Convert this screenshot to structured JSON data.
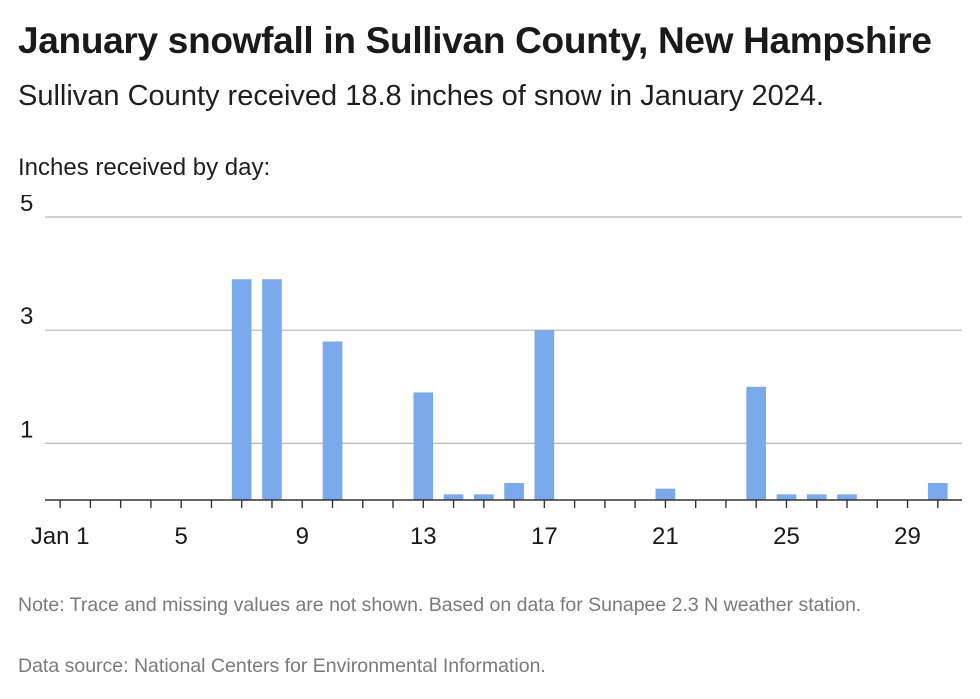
{
  "header": {
    "title": "January snowfall in Sullivan County, New Hampshire",
    "subtitle": "Sullivan County received 18.8 inches of snow in January 2024."
  },
  "footer": {
    "note": "Note: Trace and missing values are not shown. Based on data for Sunapee 2.3 N weather station.",
    "source": "Data source: National Centers for Environmental Information."
  },
  "chart_data": {
    "type": "bar",
    "title": "January snowfall in Sullivan County, New Hampshire",
    "ylabel": "Inches received by day:",
    "xlabel": "",
    "x": [
      1,
      2,
      3,
      4,
      5,
      6,
      7,
      8,
      9,
      10,
      11,
      12,
      13,
      14,
      15,
      16,
      17,
      18,
      19,
      20,
      21,
      22,
      23,
      24,
      25,
      26,
      27,
      28,
      29,
      30
    ],
    "values": [
      0,
      0,
      0,
      0,
      0,
      0,
      3.9,
      3.9,
      0,
      2.8,
      0,
      0,
      1.9,
      0.1,
      0.1,
      0.3,
      3.0,
      0,
      0,
      0,
      0.2,
      0,
      0,
      2.0,
      0.1,
      0.1,
      0.1,
      0,
      0,
      0.3
    ],
    "x_ticks": [
      1,
      5,
      9,
      13,
      17,
      21,
      25,
      29
    ],
    "x_tick_labels": [
      "Jan 1",
      "5",
      "9",
      "13",
      "17",
      "21",
      "25",
      "29"
    ],
    "y_ticks": [
      1,
      3,
      5
    ],
    "y_tick_labels": [
      "1",
      "3",
      "5"
    ],
    "ylim": [
      0,
      5
    ],
    "xlim": [
      0.5,
      30.8
    ],
    "grid": true,
    "bar_color": "#7aa9ec"
  }
}
